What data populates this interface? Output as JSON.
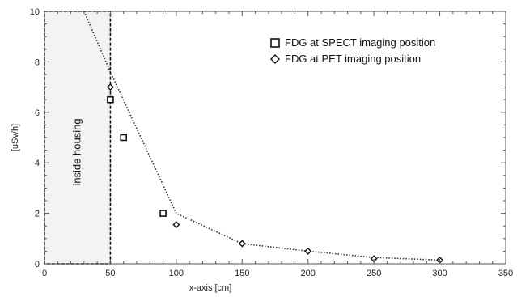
{
  "chart_data": {
    "type": "scatter",
    "title": "",
    "xlabel": "x-axis [cm]",
    "ylabel": "[uSv/h]",
    "xlim": [
      0,
      350
    ],
    "ylim": [
      0,
      10
    ],
    "xticks": [
      "0",
      "50",
      "100",
      "150",
      "200",
      "250",
      "300",
      "350"
    ],
    "yticks": [
      "0",
      "2",
      "4",
      "6",
      "8",
      "10"
    ],
    "legend": "top-right",
    "grid": false,
    "series": [
      {
        "name": "FDG at SPECT imaging position",
        "marker": "square",
        "points": [
          {
            "x": 50,
            "y": 6.5
          },
          {
            "x": 60,
            "y": 5.0
          },
          {
            "x": 90,
            "y": 2.0
          }
        ]
      },
      {
        "name": "FDG at PET imaging position",
        "marker": "diamond",
        "points": [
          {
            "x": 50,
            "y": 7.0
          },
          {
            "x": 100,
            "y": 1.55
          },
          {
            "x": 150,
            "y": 0.8
          },
          {
            "x": 200,
            "y": 0.5
          },
          {
            "x": 250,
            "y": 0.2
          },
          {
            "x": 300,
            "y": 0.15
          }
        ]
      }
    ],
    "fit_line": {
      "style": "dotted",
      "points": [
        {
          "x": 30,
          "y": 10.0
        },
        {
          "x": 50,
          "y": 7.6
        },
        {
          "x": 100,
          "y": 2.0
        },
        {
          "x": 150,
          "y": 0.8
        },
        {
          "x": 200,
          "y": 0.5
        },
        {
          "x": 250,
          "y": 0.25
        },
        {
          "x": 300,
          "y": 0.15
        }
      ]
    },
    "region": {
      "label": "inside housing",
      "x_range": [
        0,
        50
      ],
      "y_range": [
        0,
        10
      ]
    }
  }
}
